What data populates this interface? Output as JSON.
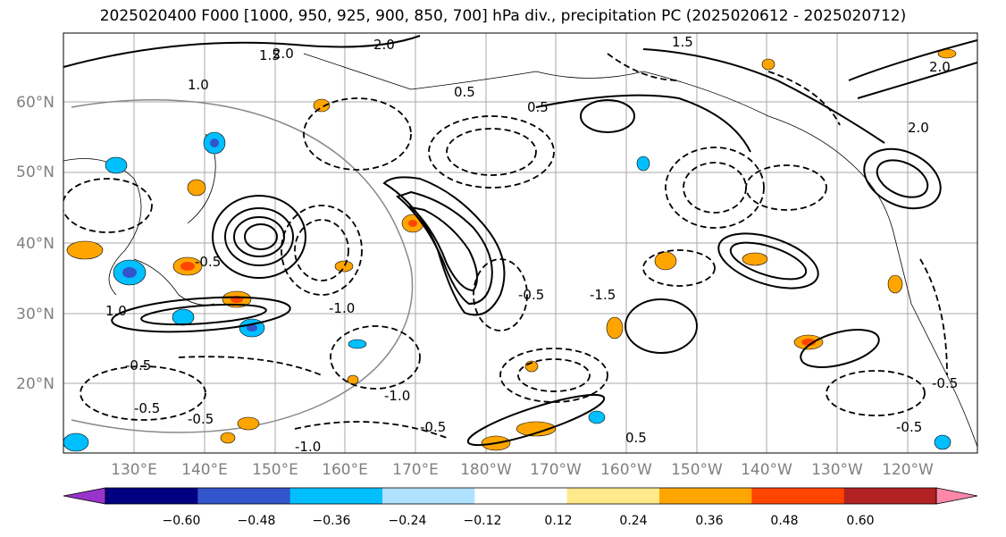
{
  "title": "2025020400 F000 [1000, 950, 925, 900, 850, 700] hPa div., precipitation PC (2025020612 - 2025020712)",
  "lat_labels": [
    "60°N",
    "50°N",
    "40°N",
    "30°N",
    "20°N"
  ],
  "lon_labels": [
    "130°E",
    "140°E",
    "150°E",
    "160°E",
    "170°E",
    "180°W",
    "170°W",
    "160°W",
    "150°W",
    "140°W",
    "130°W",
    "120°W"
  ],
  "contour_labels": {
    "positive": [
      "2.0",
      "1.5",
      "1.0",
      "0.5",
      "2.0",
      "1.5",
      "0.5",
      "0.5",
      "2.0",
      "1.0",
      "2.0"
    ],
    "negative": [
      "-0.5",
      "-0.5",
      "-0.5",
      "-1.0",
      "-0.5",
      "-1.0",
      "-0.5",
      "-1.0",
      "-1.5",
      "-0.5",
      "-0.5",
      "-0.5"
    ]
  },
  "colorbar": {
    "ticks": [
      "−0.60",
      "−0.48",
      "−0.36",
      "−0.24",
      "−0.12",
      "0.12",
      "0.24",
      "0.36",
      "0.48",
      "0.60"
    ],
    "colors": [
      "#9933cc",
      "#000080",
      "#3355cc",
      "#00bfff",
      "#b0e2ff",
      "#ffffff",
      "#ffe98a",
      "#ffa500",
      "#ff4500",
      "#b22222",
      "#ff88aa"
    ]
  }
}
